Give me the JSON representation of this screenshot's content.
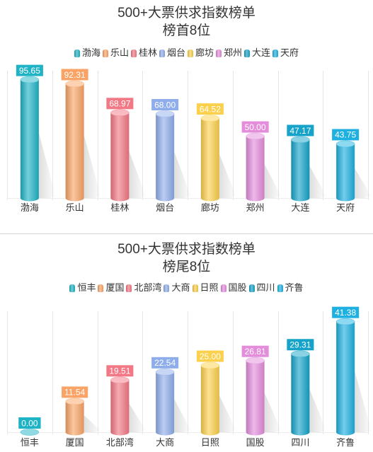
{
  "chart_data": [
    {
      "type": "bar",
      "title": "500+大票供求指数榜单",
      "subtitle": "榜首8位",
      "categories": [
        "渤海",
        "乐山",
        "桂林",
        "烟台",
        "廊坊",
        "郑州",
        "大连",
        "天府"
      ],
      "values": [
        95.65,
        92.31,
        68.97,
        68.0,
        64.52,
        50.0,
        47.17,
        43.75
      ],
      "data_labels": [
        "95.65",
        "92.31",
        "68.97",
        "68.00",
        "64.52",
        "50.00",
        "47.17",
        "43.75"
      ],
      "colors": [
        "#1fb3c6",
        "#f9a466",
        "#f17884",
        "#8fadea",
        "#fbd04c",
        "#e38ddb",
        "#15a3c9",
        "#1db0e0"
      ],
      "ylim": [
        0,
        100
      ],
      "grid": true,
      "legend": "top"
    },
    {
      "type": "bar",
      "title": "500+大票供求指数榜单",
      "subtitle": "榜尾8位",
      "categories": [
        "恒丰",
        "厦国",
        "北部湾",
        "大商",
        "日照",
        "国股",
        "四川",
        "齐鲁"
      ],
      "values": [
        0.0,
        11.54,
        19.51,
        22.54,
        25.0,
        26.81,
        29.31,
        41.38
      ],
      "data_labels": [
        "0.00",
        "11.54",
        "19.51",
        "22.54",
        "25.00",
        "26.81",
        "29.31",
        "41.38"
      ],
      "colors": [
        "#1fb3c6",
        "#f9a466",
        "#f17884",
        "#8fadea",
        "#fbd04c",
        "#e38ddb",
        "#15a3c9",
        "#1db0e0"
      ],
      "ylim": [
        0,
        45
      ],
      "grid": true,
      "legend": "top"
    }
  ]
}
